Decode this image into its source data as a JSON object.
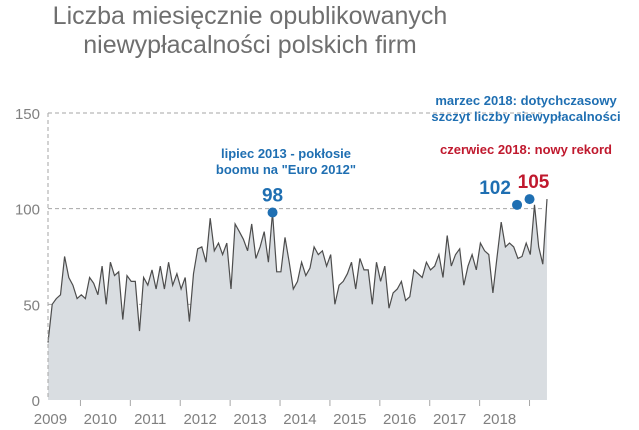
{
  "chart_data": {
    "type": "area",
    "title_lines": [
      "Liczba miesięcznie opublikowanych",
      "niewypłacalności polskich firm"
    ],
    "ylim": [
      0,
      150
    ],
    "yticks": [
      0,
      50,
      100,
      150
    ],
    "xlim": [
      2008.35,
      2018.25
    ],
    "xticks": [
      {
        "label": "2009",
        "x": 2009.0
      },
      {
        "label": "2010",
        "x": 2010.0
      },
      {
        "label": "2011",
        "x": 2011.0
      },
      {
        "label": "2012",
        "x": 2012.0
      },
      {
        "label": "2013",
        "x": 2013.0
      },
      {
        "label": "2014",
        "x": 2014.0
      },
      {
        "label": "2015",
        "x": 2015.0
      },
      {
        "label": "2016",
        "x": 2016.0
      },
      {
        "label": "2017",
        "x": 2017.0
      },
      {
        "label": "2018",
        "x": 2018.0
      }
    ],
    "grid": true,
    "series": [
      {
        "start": 2008.35,
        "step": 0.08333,
        "values": [
          30,
          50,
          53,
          55,
          75,
          64,
          60,
          53,
          55,
          53,
          64,
          61,
          55,
          70,
          50,
          72,
          65,
          67,
          42,
          65,
          62,
          62,
          36,
          64,
          60,
          68,
          58,
          70,
          58,
          72,
          60,
          66,
          58,
          64,
          41,
          66,
          79,
          80,
          72,
          95,
          78,
          82,
          76,
          82,
          58,
          92,
          88,
          84,
          78,
          92,
          74,
          80,
          88,
          72,
          98,
          67,
          67,
          85,
          72,
          58,
          62,
          72,
          65,
          69,
          80,
          76,
          78,
          70,
          76,
          50,
          60,
          62,
          66,
          72,
          58,
          74,
          68,
          68,
          50,
          72,
          62,
          70,
          48,
          56,
          58,
          62,
          52,
          54,
          68,
          66,
          64,
          72,
          68,
          70,
          76,
          64,
          86,
          70,
          76,
          79,
          60,
          70,
          76,
          68,
          82,
          78,
          76,
          56,
          75,
          93,
          80,
          82,
          80,
          74,
          75,
          82,
          76,
          102,
          80,
          71,
          105
        ]
      }
    ],
    "highlights": [
      {
        "x": 2012.85,
        "value": 98,
        "label": "98",
        "color": "#1f6fb2"
      },
      {
        "x": 2017.75,
        "value": 102,
        "label": "102",
        "color": "#1f6fb2"
      },
      {
        "x": 2018.0,
        "value": 105,
        "label": "105",
        "color": "#c0192e"
      }
    ],
    "annotations": [
      {
        "lines": [
          "lipiec 2013 - pokłosie",
          "boomu na \"Euro 2012\""
        ],
        "color": "#1f6fb2"
      },
      {
        "lines": [
          "marzec 2018: dotychczasowy",
          "szczyt liczby niewypłacalności"
        ],
        "color": "#1f6fb2"
      },
      {
        "lines": [
          "czerwiec 2018: nowy rekord"
        ],
        "color": "#c0192e"
      }
    ],
    "colors": {
      "area": "#d9dde1",
      "line": "#4d4d4d",
      "grid": "#a6a6a6",
      "point": "#1f6fb2",
      "record": "#c0192e"
    }
  }
}
